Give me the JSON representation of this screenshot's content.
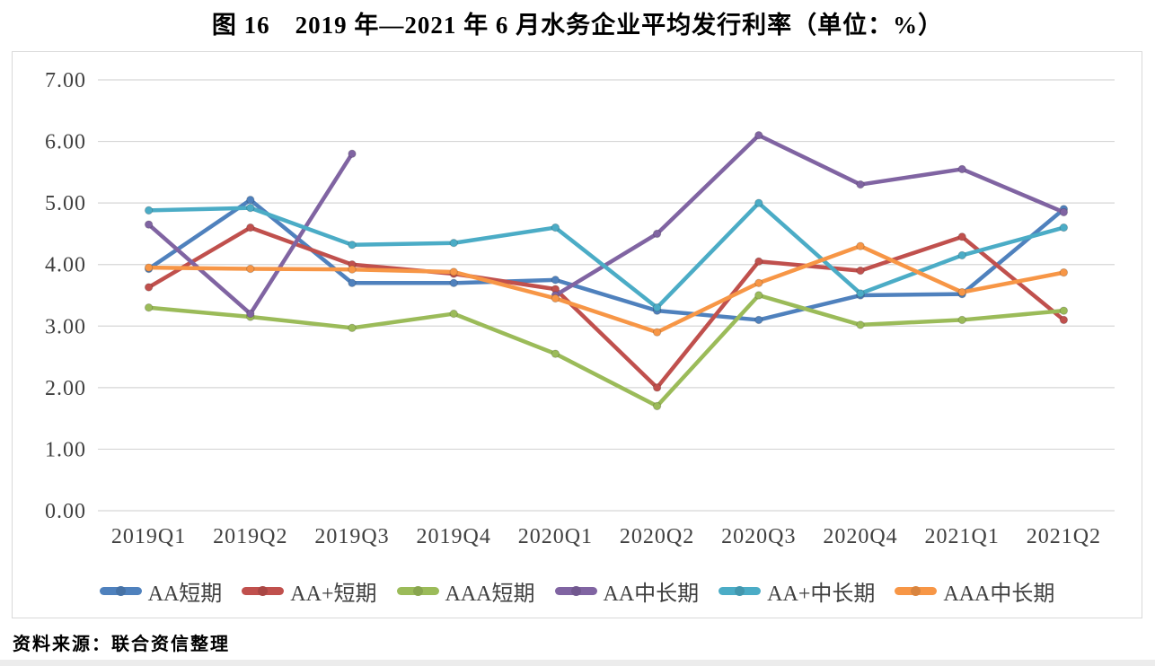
{
  "colors": {
    "grid": "#d6d6d6",
    "axis_text": "#404040",
    "chart_border": "#d9d9d9",
    "bottom_strip": "#ececec",
    "title_text": "#000000"
  },
  "chart_data": {
    "type": "line",
    "figure_label": "图 16",
    "title": "图 16　2019 年—2021 年 6 月水务企业平均发行利率（单位：%）",
    "unit": "%",
    "source": "资料来源：联合资信整理",
    "categories": [
      "2019Q1",
      "2019Q2",
      "2019Q3",
      "2019Q4",
      "2020Q1",
      "2020Q2",
      "2020Q3",
      "2020Q4",
      "2021Q1",
      "2021Q2"
    ],
    "series": [
      {
        "name": "AA短期",
        "color": "#4F81BD",
        "values": [
          3.93,
          5.05,
          3.7,
          3.7,
          3.75,
          3.25,
          3.1,
          3.5,
          3.52,
          4.9
        ]
      },
      {
        "name": "AA+短期",
        "color": "#C0504D",
        "values": [
          3.63,
          4.6,
          4.0,
          3.85,
          3.6,
          2.0,
          4.05,
          3.9,
          4.45,
          3.1
        ]
      },
      {
        "name": "AAA短期",
        "color": "#9BBB59",
        "values": [
          3.3,
          3.15,
          2.97,
          3.2,
          2.55,
          1.7,
          3.5,
          3.02,
          3.1,
          3.25
        ]
      },
      {
        "name": "AA中长期",
        "color": "#8064A2",
        "values": [
          4.65,
          3.2,
          5.8,
          null,
          3.5,
          4.5,
          6.1,
          5.3,
          5.55,
          4.85
        ]
      },
      {
        "name": "AA+中长期",
        "color": "#4BACC6",
        "values": [
          4.88,
          4.92,
          4.32,
          4.35,
          4.6,
          3.3,
          5.0,
          3.53,
          4.15,
          4.6
        ]
      },
      {
        "name": "AAA中长期",
        "color": "#F79646",
        "values": [
          3.95,
          3.93,
          3.92,
          3.88,
          3.45,
          2.9,
          3.7,
          4.3,
          3.55,
          3.87
        ]
      }
    ],
    "ylim": [
      0,
      7
    ],
    "ytick_labels": [
      "0.00",
      "1.00",
      "2.00",
      "3.00",
      "4.00",
      "5.00",
      "6.00",
      "7.00"
    ],
    "grid": true,
    "legend_position": "bottom"
  }
}
